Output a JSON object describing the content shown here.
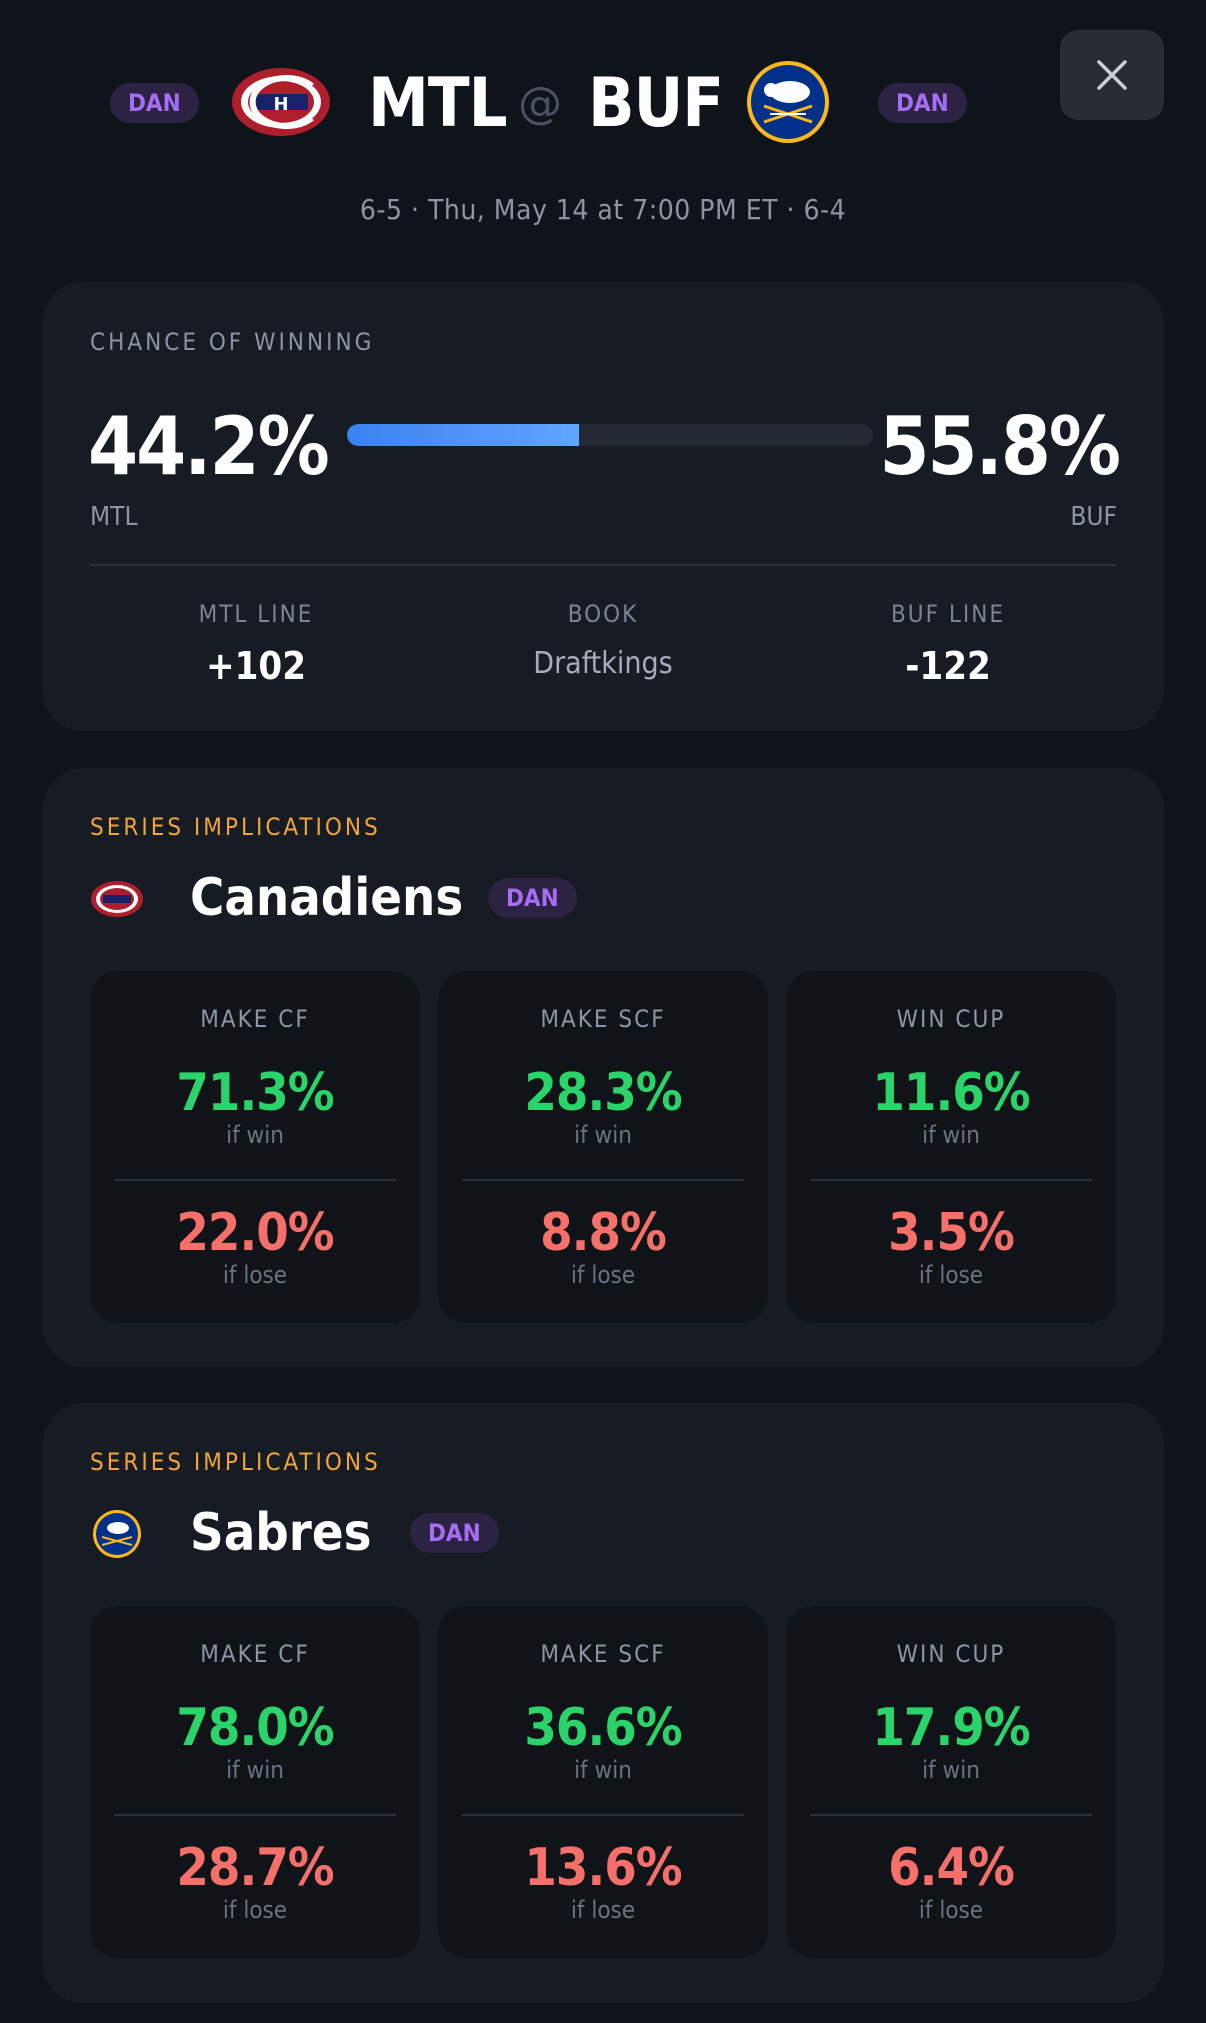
{
  "header": {
    "away": {
      "code": "MTL",
      "badge": "DAN",
      "logo": "canadiens-logo",
      "color_primary": "#af1e2d",
      "color_secondary": "#192168"
    },
    "home": {
      "code": "BUF",
      "badge": "DAN",
      "logo": "sabres-logo",
      "color_primary": "#003087",
      "color_secondary": "#ffb81c"
    },
    "at_symbol": "@",
    "subline": "6-5 · Thu, May 14 at 7:00 PM ET · 6-4",
    "close_icon": "close-icon"
  },
  "win_chance": {
    "label": "CHANCE OF WINNING",
    "away_pct": "44.2%",
    "home_pct": "55.8%",
    "away_fraction": 0.442,
    "away_team": "MTL",
    "home_team": "BUF",
    "away_line_label": "MTL LINE",
    "away_line": "+102",
    "book_label": "BOOK",
    "book": "Draftkings",
    "home_line_label": "BUF LINE",
    "home_line": "-122"
  },
  "series": [
    {
      "label": "SERIES IMPLICATIONS",
      "team_name": "Canadiens",
      "badge": "DAN",
      "stats": [
        {
          "label": "MAKE CF",
          "win": "71.3%",
          "win_sub": "if win",
          "lose": "22.0%",
          "lose_sub": "if lose"
        },
        {
          "label": "MAKE SCF",
          "win": "28.3%",
          "win_sub": "if win",
          "lose": "8.8%",
          "lose_sub": "if lose"
        },
        {
          "label": "WIN CUP",
          "win": "11.6%",
          "win_sub": "if win",
          "lose": "3.5%",
          "lose_sub": "if lose"
        }
      ]
    },
    {
      "label": "SERIES IMPLICATIONS",
      "team_name": "Sabres",
      "badge": "DAN",
      "stats": [
        {
          "label": "MAKE CF",
          "win": "78.0%",
          "win_sub": "if win",
          "lose": "28.7%",
          "lose_sub": "if lose"
        },
        {
          "label": "MAKE SCF",
          "win": "36.6%",
          "win_sub": "if win",
          "lose": "13.6%",
          "lose_sub": "if lose"
        },
        {
          "label": "WIN CUP",
          "win": "17.9%",
          "win_sub": "if win",
          "lose": "6.4%",
          "lose_sub": "if lose"
        }
      ]
    }
  ],
  "colors": {
    "accent_orange": "#f0a53a",
    "win_green": "#2bd46a",
    "lose_red": "#f5706b",
    "badge_purple": "#a76df5",
    "bar_blue": "#3a82f0"
  }
}
